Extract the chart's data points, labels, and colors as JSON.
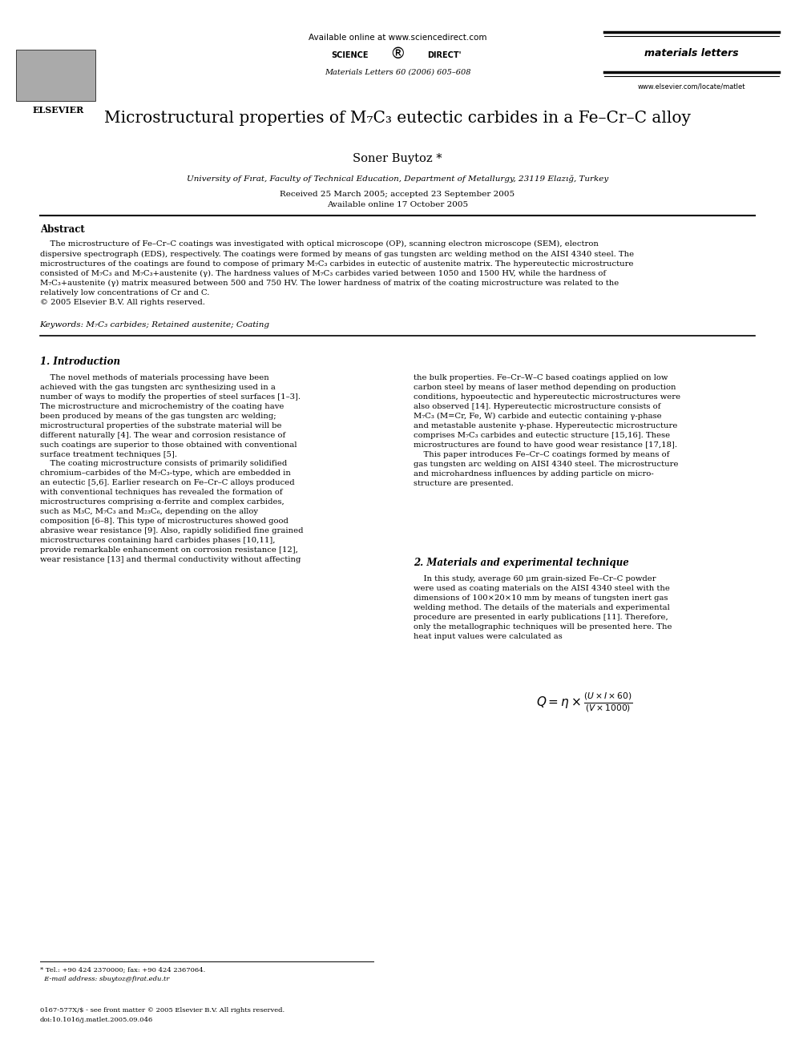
{
  "background_color": "#ffffff",
  "page_width": 9.92,
  "page_height": 13.23,
  "header": {
    "available_online": "Available online at www.sciencedirect.com",
    "journal_name": "materials letters",
    "citation": "Materials Letters 60 (2006) 605–608",
    "website": "www.elsevier.com/locate/matlet",
    "elsevier_label": "ELSEVIER"
  },
  "title": "Microstructural properties of M₇C₃ eutectic carbides in a Fe–Cr–C alloy",
  "author": "Soner Buytoz *",
  "affiliation": "University of Fırat, Faculty of Technical Education, Department of Metallurgy, 23119 Elazığ, Turkey",
  "received": "Received 25 March 2005; accepted 23 September 2005",
  "available_online_date": "Available online 17 October 2005",
  "abstract_title": "Abstract",
  "keywords": "Keywords: M₇C₃ carbides; Retained austenite; Coating",
  "section1_title": "1. Introduction",
  "section2_title": "2. Materials and experimental technique",
  "footer_note_line1": "* Tel.: +90 424 2370000; fax: +90 424 2367064.",
  "footer_note_line2": "  E-mail address: sbuytoz@firat.edu.tr",
  "footer_copyright_line1": "0167-577X/$ - see front matter © 2005 Elsevier B.V. All rights reserved.",
  "footer_copyright_line2": "doi:10.1016/j.matlet.2005.09.046"
}
